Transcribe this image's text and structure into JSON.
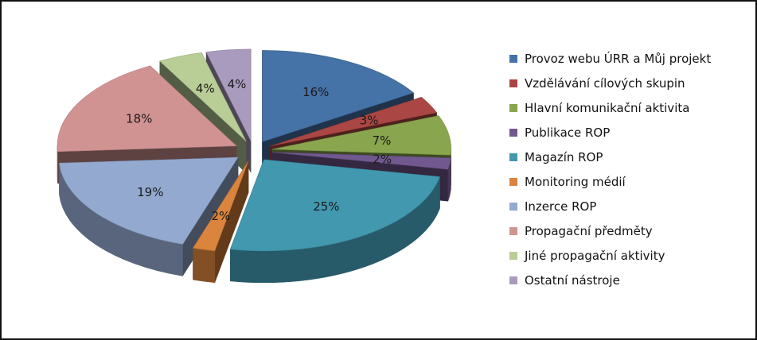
{
  "chart_data": {
    "type": "pie",
    "style": "3d-exploded",
    "series": [
      {
        "name": "Provoz webu ÚRR a Můj projekt",
        "value": 16,
        "label": "16%",
        "color": "#4572A7"
      },
      {
        "name": "Vzdělávání cílových skupin",
        "value": 3,
        "label": "3%",
        "color": "#AA4643"
      },
      {
        "name": "Hlavní komunikační aktivita",
        "value": 7,
        "label": "7%",
        "color": "#89A54E"
      },
      {
        "name": "Publikace ROP",
        "value": 2,
        "label": "2%",
        "color": "#71588F"
      },
      {
        "name": "Magazín ROP",
        "value": 25,
        "label": "25%",
        "color": "#4198AF"
      },
      {
        "name": "Monitoring médií",
        "value": 2,
        "label": "2%",
        "color": "#DB843D"
      },
      {
        "name": "Inzerce ROP",
        "value": 19,
        "label": "19%",
        "color": "#93A9CF"
      },
      {
        "name": "Propagační předměty",
        "value": 18,
        "label": "18%",
        "color": "#D19392"
      },
      {
        "name": "Jiné propagační aktivity",
        "value": 4,
        "label": "4%",
        "color": "#B9CD96"
      },
      {
        "name": "Ostatní nástroje",
        "value": 4,
        "label": "4%",
        "color": "#A99BBD"
      }
    ],
    "legend_position": "right"
  }
}
